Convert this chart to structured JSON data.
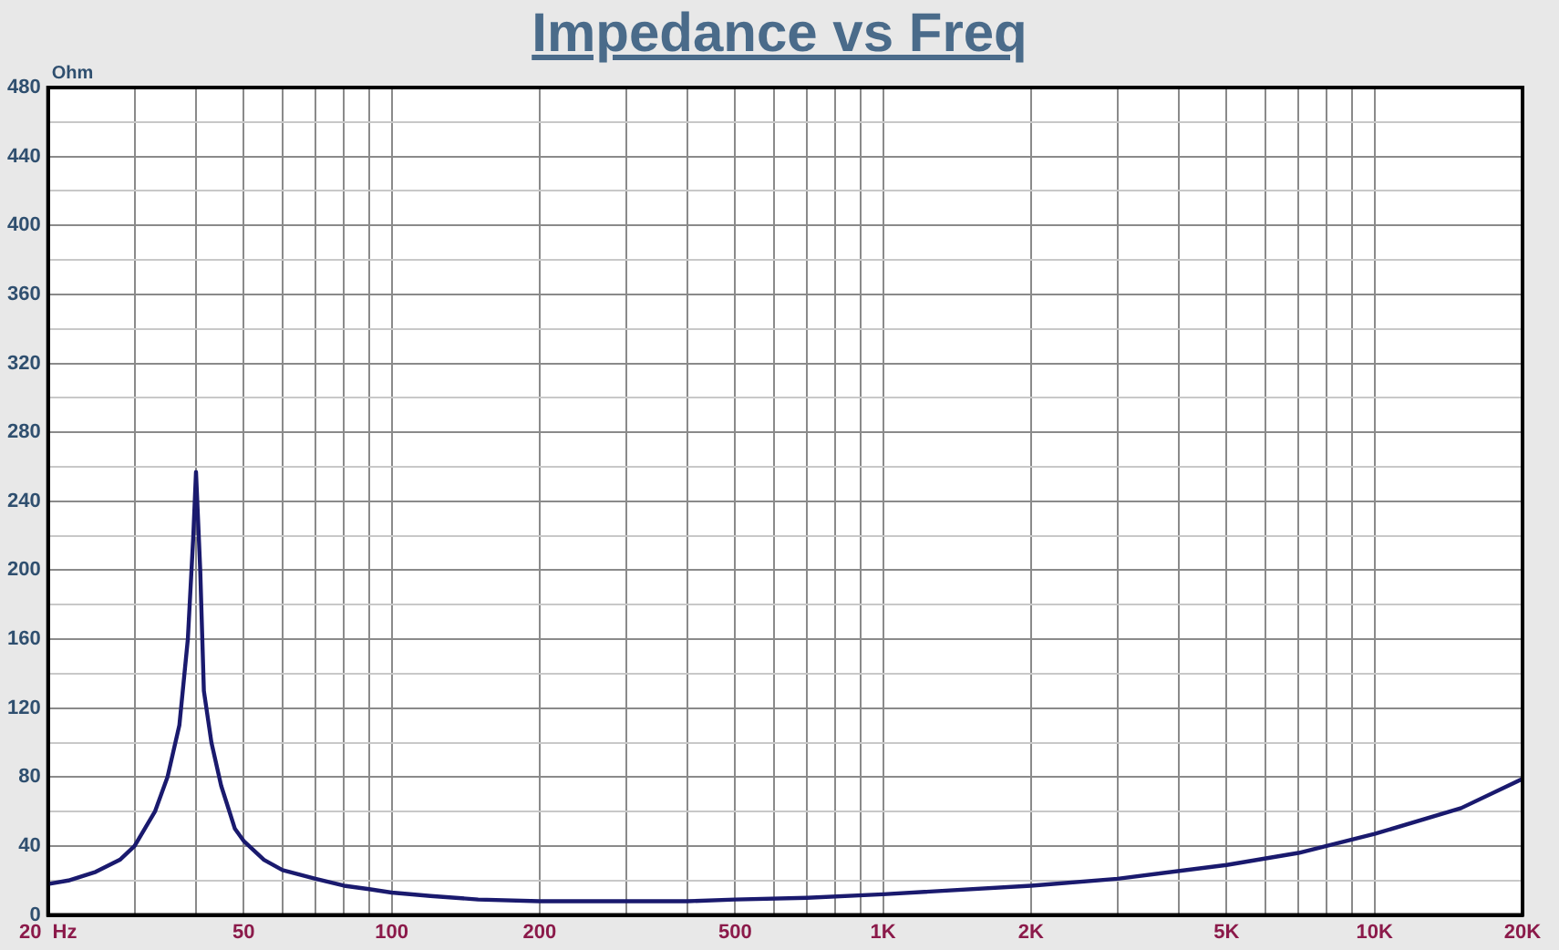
{
  "chart_data": {
    "type": "line",
    "title": "Impedance vs Freq",
    "ylabel": "Ohm",
    "log": "x",
    "grid": true,
    "legend": false,
    "marker": "none",
    "line_style": "solid",
    "xlim": [
      20,
      20000
    ],
    "xticks": [
      {
        "value": 20,
        "label": "20  Hz"
      },
      {
        "value": 30,
        "label": null
      },
      {
        "value": 40,
        "label": null
      },
      {
        "value": 50,
        "label": "50"
      },
      {
        "value": 60,
        "label": null
      },
      {
        "value": 70,
        "label": null
      },
      {
        "value": 80,
        "label": null
      },
      {
        "value": 90,
        "label": null
      },
      {
        "value": 100,
        "label": "100"
      },
      {
        "value": 200,
        "label": "200"
      },
      {
        "value": 300,
        "label": null
      },
      {
        "value": 400,
        "label": null
      },
      {
        "value": 500,
        "label": "500"
      },
      {
        "value": 600,
        "label": null
      },
      {
        "value": 700,
        "label": null
      },
      {
        "value": 800,
        "label": null
      },
      {
        "value": 900,
        "label": null
      },
      {
        "value": 1000,
        "label": "1K"
      },
      {
        "value": 2000,
        "label": "2K"
      },
      {
        "value": 3000,
        "label": null
      },
      {
        "value": 4000,
        "label": null
      },
      {
        "value": 5000,
        "label": "5K"
      },
      {
        "value": 6000,
        "label": null
      },
      {
        "value": 7000,
        "label": null
      },
      {
        "value": 8000,
        "label": null
      },
      {
        "value": 9000,
        "label": null
      },
      {
        "value": 10000,
        "label": "10K"
      },
      {
        "value": 20000,
        "label": "20K"
      }
    ],
    "ylim": [
      0,
      480
    ],
    "yticks": [
      0,
      {
        "value": 20,
        "label": null
      },
      40,
      {
        "value": 60,
        "label": null
      },
      80,
      {
        "value": 100,
        "label": null
      },
      120,
      {
        "value": 140,
        "label": null
      },
      160,
      {
        "value": 180,
        "label": null
      },
      200,
      {
        "value": 220,
        "label": null
      },
      240,
      {
        "value": 260,
        "label": null
      },
      280,
      {
        "value": 300,
        "label": null
      },
      320,
      {
        "value": 340,
        "label": null
      },
      360,
      {
        "value": 380,
        "label": null
      },
      400,
      {
        "value": 420,
        "label": null
      },
      440,
      {
        "value": 460,
        "label": null
      },
      480
    ],
    "x": [
      20,
      22,
      25,
      28,
      30,
      33,
      35,
      37,
      38.5,
      39.5,
      40,
      40.8,
      41.5,
      43,
      45,
      48,
      50,
      55,
      60,
      70,
      80,
      90,
      100,
      120,
      150,
      200,
      300,
      400,
      500,
      700,
      1000,
      2000,
      3000,
      5000,
      7000,
      10000,
      15000,
      20000
    ],
    "series": [
      {
        "color": "#1a1a6e",
        "values": [
          18,
          20,
          25,
          32,
          40,
          60,
          80,
          110,
          160,
          220,
          257,
          200,
          130,
          100,
          75,
          50,
          43,
          32,
          26,
          21,
          17,
          15,
          13,
          11,
          9,
          8,
          8,
          8,
          9,
          10,
          12,
          17,
          21,
          29,
          36,
          47,
          62,
          79
        ]
      }
    ]
  }
}
